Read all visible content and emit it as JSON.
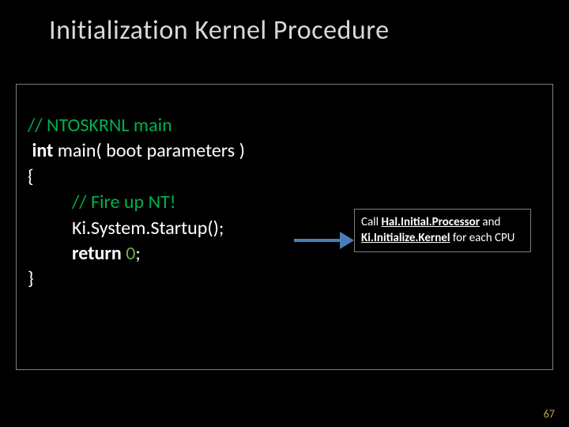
{
  "slide": {
    "title": "Initialization Kernel Procedure",
    "page_number": "67",
    "background_color": "#000000",
    "title_color": "#d9d9d9",
    "text_color": "#ffffff",
    "comment_color": "#00b050",
    "number_color": "#70ad47",
    "border_color": "#7f7f7f",
    "arrow_color": "#4a7ebb",
    "page_num_color": "#bfa14a"
  },
  "code": {
    "line1_comment": "// NTOSKRNL main",
    "line2_pre": " ",
    "line2_kw": "int",
    "line2_rest": " main( boot parameters )",
    "line3": "{",
    "line4_comment": "// Fire up NT!",
    "line5": "Ki.System.Startup();",
    "line6_kw": "return",
    "line6_sp": " ",
    "line6_num": "0",
    "line6_end": ";",
    "line7": "}"
  },
  "callout": {
    "w1": "Call ",
    "u1": "Hal.Initial.Processor",
    "w2": " and ",
    "u2": "Ki.Initialize.Kernel",
    "w3": " for each CPU"
  }
}
